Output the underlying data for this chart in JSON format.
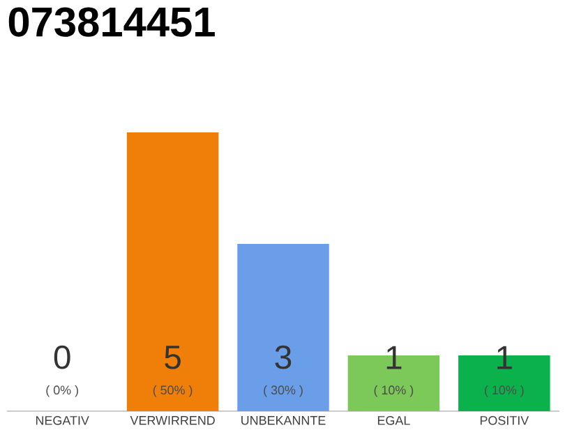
{
  "chart_data": {
    "type": "bar",
    "title": "073814451",
    "categories": [
      "NEGATIV",
      "VERWIRREND",
      "UNBEKANNTE",
      "EGAL",
      "POSITIV"
    ],
    "values": [
      0,
      5,
      3,
      1,
      1
    ],
    "colors": [
      "#e04040",
      "#f07f09",
      "#6a9ee8",
      "#7cc95a",
      "#0bb24b"
    ],
    "ylim": [
      0,
      5
    ],
    "tick_labels": "x",
    "data_labels": true,
    "annotations": [
      {
        "text": "( 0% )",
        "x": "NEGATIV",
        "y": 0
      },
      {
        "text": "( 50% )",
        "x": "VERWIRREND",
        "y": 0
      },
      {
        "text": "( 30% )",
        "x": "UNBEKANNTE",
        "y": 0
      },
      {
        "text": "( 10% )",
        "x": "EGAL",
        "y": 0
      },
      {
        "text": "( 10% )",
        "x": "POSITIV",
        "y": 0
      }
    ]
  }
}
